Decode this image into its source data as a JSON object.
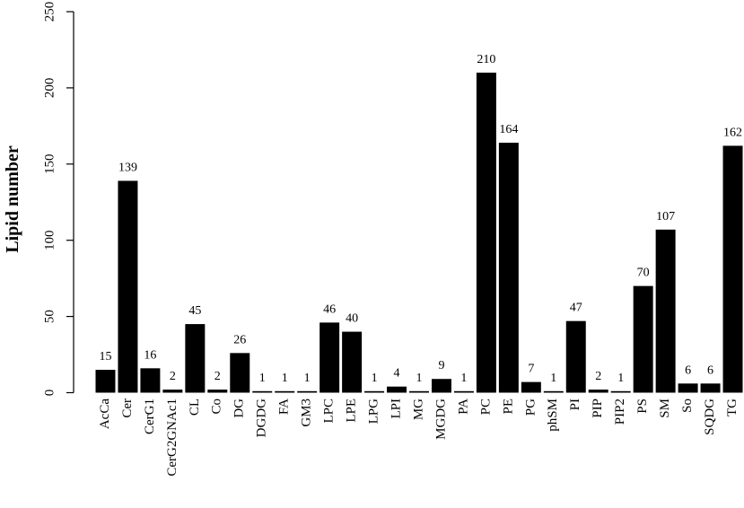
{
  "chart_data": {
    "type": "bar",
    "title": "",
    "xlabel": "",
    "ylabel": "Lipid number",
    "ylim": [
      0,
      250
    ],
    "yticks": [
      0,
      50,
      100,
      150,
      200,
      250
    ],
    "grid": false,
    "bar_color": "#000000",
    "categories": [
      "AcCa",
      "Cer",
      "CerG1",
      "CerG2GNAc1",
      "CL",
      "Co",
      "DG",
      "DGDG",
      "FA",
      "GM3",
      "LPC",
      "LPE",
      "LPG",
      "LPI",
      "MG",
      "MGDG",
      "PA",
      "PC",
      "PE",
      "PG",
      "phSM",
      "PI",
      "PIP",
      "PIP2",
      "PS",
      "SM",
      "So",
      "SQDG",
      "TG"
    ],
    "values": [
      15,
      139,
      16,
      2,
      45,
      2,
      26,
      1,
      1,
      1,
      46,
      40,
      1,
      4,
      1,
      9,
      1,
      210,
      164,
      7,
      1,
      47,
      2,
      1,
      70,
      107,
      6,
      6,
      162
    ]
  }
}
